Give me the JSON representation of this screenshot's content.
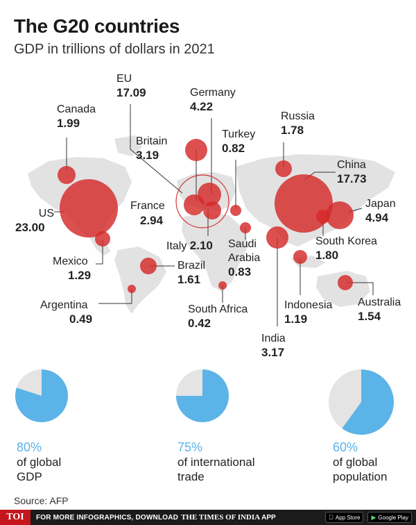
{
  "header": {
    "title": "The G20 countries",
    "subtitle": "GDP in trillions of dollars in 2021"
  },
  "colors": {
    "bubble": "#d42a2a",
    "land": "#e2e2e2",
    "pie_blue": "#5cb3e8",
    "pie_gray": "#e4e4e4",
    "pct_text": "#5cb3e8"
  },
  "chart_data": {
    "type": "bubble-map",
    "title": "The G20 countries",
    "subtitle": "GDP in trillions of dollars in 2021",
    "unit": "trillions of dollars",
    "countries": [
      {
        "name": "EU",
        "value": "17.09",
        "gdp": 17.09
      },
      {
        "name": "Germany",
        "value": "4.22",
        "gdp": 4.22
      },
      {
        "name": "Canada",
        "value": "1.99",
        "gdp": 1.99
      },
      {
        "name": "Russia",
        "value": "1.78",
        "gdp": 1.78
      },
      {
        "name": "Britain",
        "value": "3.19",
        "gdp": 3.19
      },
      {
        "name": "Turkey",
        "value": "0.82",
        "gdp": 0.82
      },
      {
        "name": "China",
        "value": "17.73",
        "gdp": 17.73
      },
      {
        "name": "US",
        "value": "23.00",
        "gdp": 23.0
      },
      {
        "name": "France",
        "value": "2.94",
        "gdp": 2.94
      },
      {
        "name": "Japan",
        "value": "4.94",
        "gdp": 4.94
      },
      {
        "name": "Italy",
        "value": "2.10",
        "gdp": 2.1
      },
      {
        "name": "Saudi Arabia",
        "value": "0.83",
        "gdp": 0.83
      },
      {
        "name": "South Korea",
        "value": "1.80",
        "gdp": 1.8
      },
      {
        "name": "Mexico",
        "value": "1.29",
        "gdp": 1.29
      },
      {
        "name": "Brazil",
        "value": "1.61",
        "gdp": 1.61
      },
      {
        "name": "Argentina",
        "value": "0.49",
        "gdp": 0.49
      },
      {
        "name": "South Africa",
        "value": "0.42",
        "gdp": 0.42
      },
      {
        "name": "Indonesia",
        "value": "1.19",
        "gdp": 1.19
      },
      {
        "name": "Australia",
        "value": "1.54",
        "gdp": 1.54
      },
      {
        "name": "India",
        "value": "3.17",
        "gdp": 3.17
      }
    ]
  },
  "labels": {
    "eu": {
      "name": "EU",
      "value": "17.09"
    },
    "germany": {
      "name": "Germany",
      "value": "4.22"
    },
    "canada": {
      "name": "Canada",
      "value": "1.99"
    },
    "russia": {
      "name": "Russia",
      "value": "1.78"
    },
    "britain": {
      "name": "Britain",
      "value": "3.19"
    },
    "turkey": {
      "name": "Turkey",
      "value": "0.82"
    },
    "china": {
      "name": "China",
      "value": "17.73"
    },
    "us": {
      "name": "US",
      "value": "23.00"
    },
    "france": {
      "name": "France",
      "value": "2.94"
    },
    "japan": {
      "name": "Japan",
      "value": "4.94"
    },
    "italy": {
      "name": "Italy",
      "value": "2.10"
    },
    "saudi": {
      "name1": "Saudi",
      "name2": "Arabia",
      "value": "0.83"
    },
    "skorea": {
      "name": "South Korea",
      "value": "1.80"
    },
    "mexico": {
      "name": "Mexico",
      "value": "1.29"
    },
    "brazil": {
      "name": "Brazil",
      "value": "1.61"
    },
    "argentina": {
      "name": "Argentina",
      "value": "0.49"
    },
    "safrica": {
      "name": "South Africa",
      "value": "0.42"
    },
    "indonesia": {
      "name": "Indonesia",
      "value": "1.19"
    },
    "australia": {
      "name": "Australia",
      "value": "1.54"
    },
    "india": {
      "name": "India",
      "value": "3.17"
    }
  },
  "stats": [
    {
      "pct": "80%",
      "line1": "of global",
      "line2": "GDP",
      "fraction": 0.8
    },
    {
      "pct": "75%",
      "line1": "of international",
      "line2": "trade",
      "fraction": 0.75
    },
    {
      "pct": "60%",
      "line1": "of global",
      "line2": "population",
      "fraction": 0.6
    }
  ],
  "source": "Source: AFP",
  "footer": {
    "logo": "TOI",
    "text": "FOR MORE INFOGRAPHICS, DOWNLOAD",
    "brand": "THE TIMES OF INDIA",
    "app": "APP",
    "appstore": "App Store",
    "googleplay": "Google Play",
    "apple_icon": "apple-icon",
    "play_icon": "play-icon"
  }
}
